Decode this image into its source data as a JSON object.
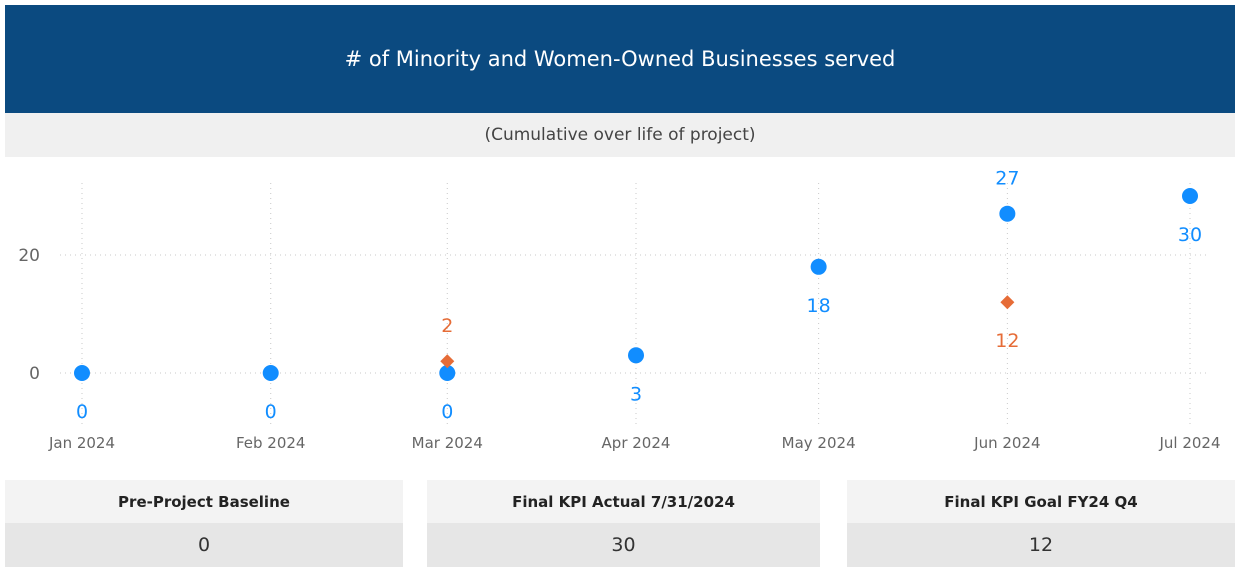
{
  "chart_data": {
    "type": "scatter",
    "title": "# of Minority and Women-Owned Businesses served",
    "subtitle": "(Cumulative over life of project)",
    "categories": [
      "Jan 2024",
      "Feb 2024",
      "Mar 2024",
      "Apr 2024",
      "May 2024",
      "Jun 2024",
      "Jul 2024"
    ],
    "series": [
      {
        "color": "#118dff",
        "marker": "circle",
        "values": [
          0,
          0,
          0,
          3,
          18,
          27,
          30
        ]
      },
      {
        "color": "#e66c37",
        "marker": "diamond",
        "values": [
          null,
          null,
          2,
          null,
          null,
          12,
          null
        ]
      }
    ],
    "ylim": [
      -10,
      33
    ],
    "yticks": [
      0,
      20
    ],
    "grid": true
  },
  "cards": [
    {
      "label": "Pre-Project Baseline",
      "value": 0
    },
    {
      "label": "Final KPI Actual 7/31/2024",
      "value": 30
    },
    {
      "label": "Final KPI Goal FY24 Q4",
      "value": 12
    }
  ]
}
